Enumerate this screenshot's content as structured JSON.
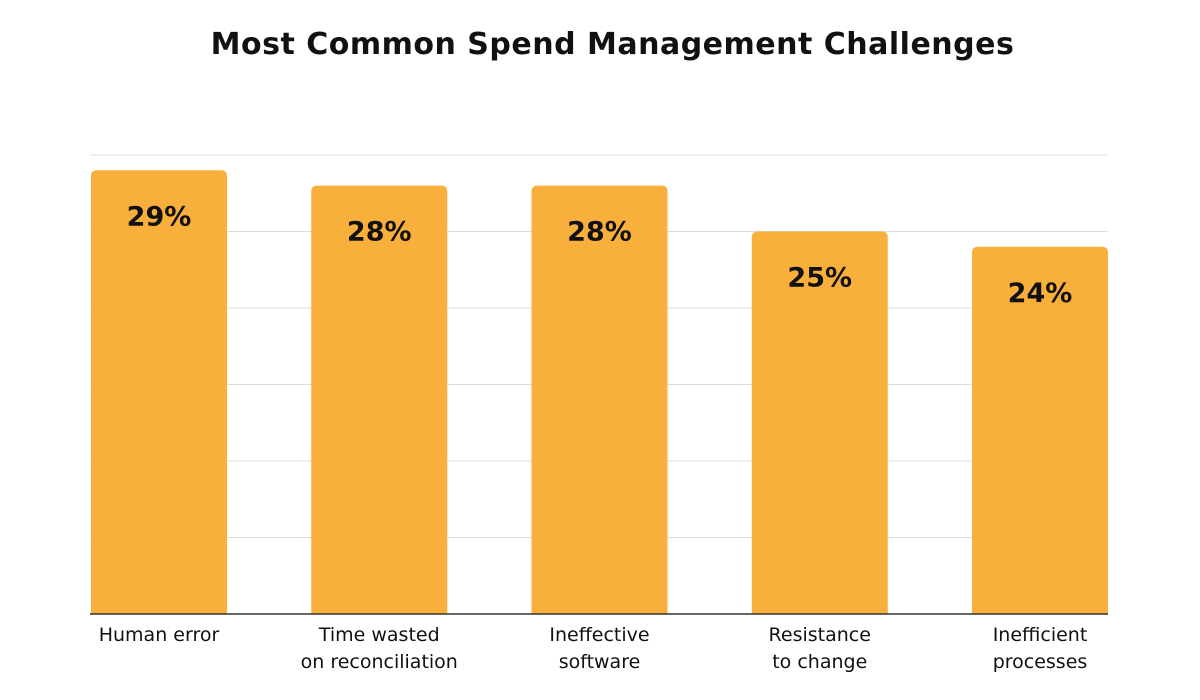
{
  "chart_data": {
    "type": "bar",
    "title": "Most Common Spend Management Challenges",
    "categories": [
      [
        "Human error"
      ],
      [
        "Time wasted",
        "on reconciliation"
      ],
      [
        "Ineffective",
        "software"
      ],
      [
        "Resistance",
        "to change"
      ],
      [
        "Inefficient",
        "processes"
      ]
    ],
    "values": [
      29,
      28,
      28,
      25,
      24
    ],
    "value_labels": [
      "29%",
      "28%",
      "28%",
      "25%",
      "24%"
    ],
    "ylim": [
      0,
      30
    ],
    "grid": true,
    "legend": "none",
    "xlabel": "",
    "ylabel": "",
    "colors": {
      "bar": "#F9AF3B",
      "grid": "#DDDDDD",
      "axis": "#333333",
      "text": "#111111"
    }
  }
}
